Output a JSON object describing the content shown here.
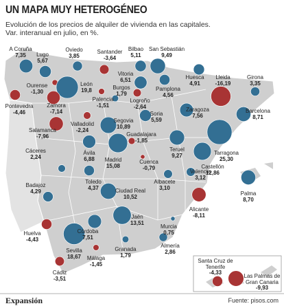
{
  "header": {
    "title": "UN MAPA MUY HETEROGÉNEO",
    "subtitle": [
      "Evolución de los precios de alquiler de vivienda en las capitales.",
      "Var. interanual en julio, en %."
    ]
  },
  "cities": [
    {
      "name": "A Coruña",
      "value": 7.35,
      "label": "7,35"
    },
    {
      "name": "Lugo",
      "value": 5.67,
      "label": "5,67"
    },
    {
      "name": "Oviedo",
      "value": 3.85,
      "label": "3,85"
    },
    {
      "name": "Santander",
      "value": -3.64,
      "label": "-3,64"
    },
    {
      "name": "Bilbao",
      "value": 5.11,
      "label": "5,11"
    },
    {
      "name": "San Sebastián",
      "value": 9.49,
      "label": "9,49"
    },
    {
      "name": "Ourense",
      "value": -1.3,
      "label": "-1,30"
    },
    {
      "name": "León",
      "value": 19.8,
      "label": "19,8"
    },
    {
      "name": "Vitoria",
      "value": 6.51,
      "label": "6,51"
    },
    {
      "name": "Huesca",
      "value": 4.91,
      "label": "4,91"
    },
    {
      "name": "Lleida",
      "value": -16.19,
      "label": "-16,19"
    },
    {
      "name": "Girona",
      "value": 3.35,
      "label": "3,35"
    },
    {
      "name": "Pontevedra",
      "value": -4.46,
      "label": "-4,46"
    },
    {
      "name": "Palencia",
      "value": -1.51,
      "label": "-1,51"
    },
    {
      "name": "Burgos",
      "value": 1.79,
      "label": "1,79"
    },
    {
      "name": "Pamplona",
      "value": 4.56,
      "label": "4,56"
    },
    {
      "name": "Logroño",
      "value": -2.64,
      "label": "-2,64"
    },
    {
      "name": "Zamora",
      "value": -7.14,
      "label": "-7,14"
    },
    {
      "name": "Valladolid",
      "value": -2.24,
      "label": "-2,24"
    },
    {
      "name": "Segovia",
      "value": 10.89,
      "label": "10,89"
    },
    {
      "name": "Soria",
      "value": 5.59,
      "label": "5,59"
    },
    {
      "name": "Zaragoza",
      "value": 7.56,
      "label": "7,56"
    },
    {
      "name": "Barcelona",
      "value": 8.71,
      "label": "8,71"
    },
    {
      "name": "Salamanca",
      "value": -7.96,
      "label": "-7,96"
    },
    {
      "name": "Guadalajara",
      "value": -1.85,
      "label": "-1,85"
    },
    {
      "name": "Tarragona",
      "value": 25.3,
      "label": "25,30"
    },
    {
      "name": "Ávila",
      "value": 6.88,
      "label": "6,88"
    },
    {
      "name": "Madrid",
      "value": 15.08,
      "label": "15,08"
    },
    {
      "name": "Teruel",
      "value": 9.27,
      "label": "9,27"
    },
    {
      "name": "Castellón",
      "value": 12.86,
      "label": "12,86"
    },
    {
      "name": "Cáceres",
      "value": 2.24,
      "label": "2,24"
    },
    {
      "name": "Cuenca",
      "value": -0.79,
      "label": "-0,79"
    },
    {
      "name": "Valencia",
      "value": 3.12,
      "label": "3,12"
    },
    {
      "name": "Toledo",
      "value": 4.37,
      "label": "4,37"
    },
    {
      "name": "Badajoz",
      "value": 4.29,
      "label": "4,29"
    },
    {
      "name": "Albacete",
      "value": 3.1,
      "label": "3,10"
    },
    {
      "name": "Ciudad Real",
      "value": 10.52,
      "label": "10,52"
    },
    {
      "name": "Palma",
      "value": 8.7,
      "label": "8,70"
    },
    {
      "name": "Alicante",
      "value": -8.11,
      "label": "-8,11"
    },
    {
      "name": "Jaén",
      "value": 13.51,
      "label": "13,51"
    },
    {
      "name": "Huelva",
      "value": -4.43,
      "label": "-4,43"
    },
    {
      "name": "Córdoba",
      "value": 7.51,
      "label": "7,51"
    },
    {
      "name": "Murcia",
      "value": 0.75,
      "label": "0,75"
    },
    {
      "name": "Sevilla",
      "value": 18.67,
      "label": "18,67"
    },
    {
      "name": "Granada",
      "value": 1.79,
      "label": "1,79"
    },
    {
      "name": "Almería",
      "value": 2.86,
      "label": "2,86"
    },
    {
      "name": "Málaga",
      "value": -1.45,
      "label": "-1,45"
    },
    {
      "name": "Cádiz",
      "value": -3.51,
      "label": "-3,51"
    },
    {
      "name": "Santa Cruz de Tenerife",
      "value": -4.33,
      "label": "-4,33"
    },
    {
      "name": "Las Palmas de Gran Canaria",
      "value": -9.93,
      "label": "-9,93"
    }
  ],
  "footer": {
    "brand": "Expansión",
    "source": "Fuente: pisos.com"
  }
}
